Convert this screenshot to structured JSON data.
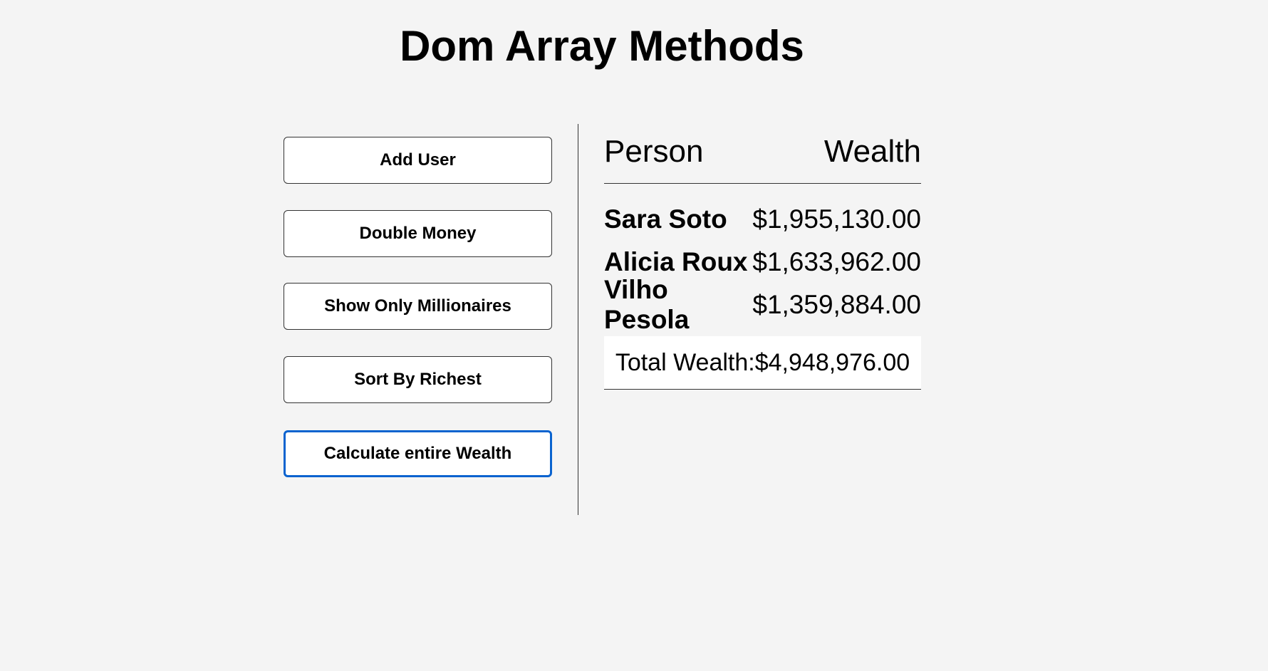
{
  "title": "Dom Array Methods",
  "buttons": [
    {
      "label": "Add User"
    },
    {
      "label": "Double Money"
    },
    {
      "label": "Show Only Millionaires"
    },
    {
      "label": "Sort By Richest"
    },
    {
      "label": "Calculate entire Wealth",
      "focused": true
    }
  ],
  "table": {
    "headers": {
      "person": "Person",
      "wealth": "Wealth"
    },
    "rows": [
      {
        "name": "Sara Soto",
        "wealth": "$1,955,130.00"
      },
      {
        "name": "Alicia Roux",
        "wealth": "$1,633,962.00"
      },
      {
        "name": "Vilho Pesola",
        "wealth": "$1,359,884.00"
      }
    ],
    "total_label": "Total Wealth:",
    "total_value": "$4,948,976.00"
  },
  "colors": {
    "background": "#f4f4f4",
    "focus": "#0a63cf"
  }
}
